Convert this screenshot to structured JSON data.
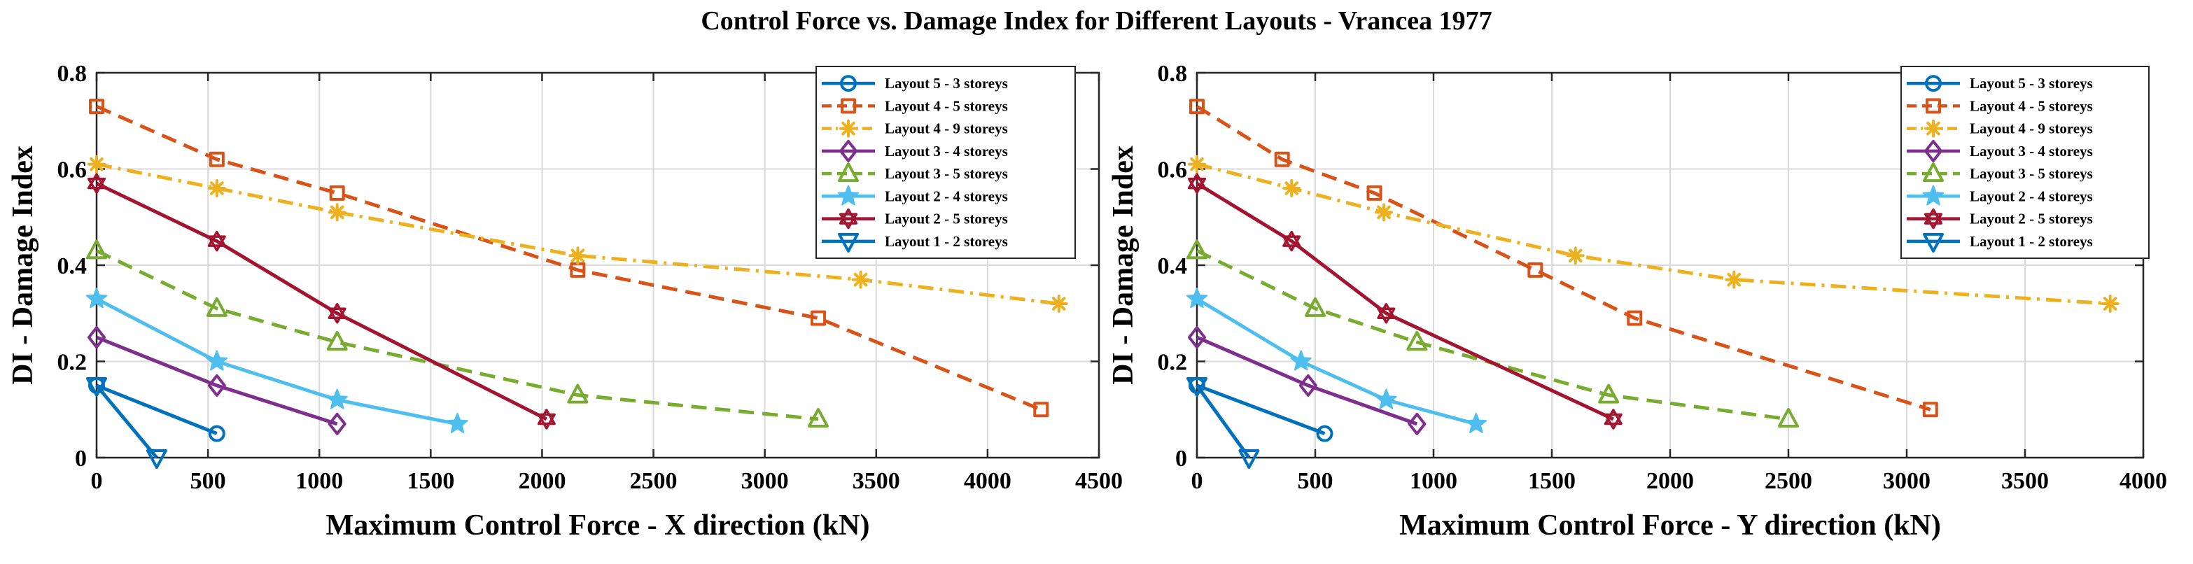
{
  "figure": {
    "title": "Control Force vs. Damage Index for Different Layouts - Vrancea 1977"
  },
  "chart_data": [
    {
      "type": "line",
      "title": "",
      "xlabel": "Maximum Control Force  - X direction (kN)",
      "ylabel": "DI - Damage Index",
      "xlim": [
        0,
        4500
      ],
      "ylim": [
        0,
        0.8
      ],
      "xticks": [
        0,
        500,
        1000,
        1500,
        2000,
        2500,
        3000,
        3500,
        4000,
        4500
      ],
      "yticks": [
        0,
        0.2,
        0.4,
        0.6,
        0.8
      ],
      "grid": true,
      "legend_position": "top-right",
      "series": [
        {
          "name": "Layout 5 - 3 storeys",
          "color": "#0072BD",
          "dash": "solid",
          "marker": "circle",
          "x": [
            0,
            540
          ],
          "y": [
            0.15,
            0.05
          ]
        },
        {
          "name": "Layout 4 - 5 storeys",
          "color": "#D95319",
          "dash": "dashed",
          "marker": "square",
          "x": [
            0,
            540,
            1080,
            2160,
            3240,
            4240
          ],
          "y": [
            0.73,
            0.62,
            0.55,
            0.39,
            0.29,
            0.1
          ]
        },
        {
          "name": "Layout 4 - 9 storeys",
          "color": "#EDB120",
          "dash": "dashdot",
          "marker": "asterisk",
          "x": [
            0,
            540,
            1080,
            2160,
            3430,
            4320
          ],
          "y": [
            0.61,
            0.56,
            0.51,
            0.42,
            0.37,
            0.32
          ]
        },
        {
          "name": "Layout 3 - 4 storeys",
          "color": "#7E2F8E",
          "dash": "solid",
          "marker": "diamond",
          "x": [
            0,
            540,
            1080
          ],
          "y": [
            0.25,
            0.15,
            0.07
          ]
        },
        {
          "name": "Layout 3 - 5 storeys",
          "color": "#77AC30",
          "dash": "dashed",
          "marker": "triangle-up",
          "x": [
            0,
            540,
            1080,
            2160,
            3240
          ],
          "y": [
            0.43,
            0.31,
            0.24,
            0.13,
            0.08
          ]
        },
        {
          "name": "Layout 2 - 4 storeys",
          "color": "#4DBEEE",
          "dash": "solid",
          "marker": "star",
          "x": [
            0,
            540,
            1080,
            1620
          ],
          "y": [
            0.33,
            0.2,
            0.12,
            0.07
          ]
        },
        {
          "name": "Layout 2 - 5 storeys",
          "color": "#A2142F",
          "dash": "solid",
          "marker": "hexagram",
          "x": [
            0,
            540,
            1080,
            2020
          ],
          "y": [
            0.57,
            0.45,
            0.3,
            0.08
          ]
        },
        {
          "name": "Layout 1 - 2 storeys",
          "color": "#0072BD",
          "dash": "solid",
          "marker": "triangle-down",
          "x": [
            0,
            270
          ],
          "y": [
            0.15,
            0.0
          ]
        }
      ]
    },
    {
      "type": "line",
      "title": "",
      "xlabel": "Maximum Control Force  - Y direction (kN)",
      "ylabel": "DI - Damage Index",
      "xlim": [
        0,
        4000
      ],
      "ylim": [
        0,
        0.8
      ],
      "xticks": [
        0,
        500,
        1000,
        1500,
        2000,
        2500,
        3000,
        3500,
        4000
      ],
      "yticks": [
        0,
        0.2,
        0.4,
        0.6,
        0.8
      ],
      "grid": true,
      "legend_position": "top-right",
      "series": [
        {
          "name": "Layout 5 - 3 storeys",
          "color": "#0072BD",
          "dash": "solid",
          "marker": "circle",
          "x": [
            0,
            540
          ],
          "y": [
            0.15,
            0.05
          ]
        },
        {
          "name": "Layout 4 - 5 storeys",
          "color": "#D95319",
          "dash": "dashed",
          "marker": "square",
          "x": [
            0,
            360,
            750,
            1430,
            1850,
            3100
          ],
          "y": [
            0.73,
            0.62,
            0.55,
            0.39,
            0.29,
            0.1
          ]
        },
        {
          "name": "Layout 4 - 9 storeys",
          "color": "#EDB120",
          "dash": "dashdot",
          "marker": "asterisk",
          "x": [
            0,
            400,
            790,
            1600,
            2270,
            3860
          ],
          "y": [
            0.61,
            0.56,
            0.51,
            0.42,
            0.37,
            0.32
          ]
        },
        {
          "name": "Layout 3 - 4 storeys",
          "color": "#7E2F8E",
          "dash": "solid",
          "marker": "diamond",
          "x": [
            0,
            470,
            930
          ],
          "y": [
            0.25,
            0.15,
            0.07
          ]
        },
        {
          "name": "Layout 3 - 5 storeys",
          "color": "#77AC30",
          "dash": "dashed",
          "marker": "triangle-up",
          "x": [
            0,
            500,
            930,
            1740,
            2500
          ],
          "y": [
            0.43,
            0.31,
            0.24,
            0.13,
            0.08
          ]
        },
        {
          "name": "Layout 2 - 4 storeys",
          "color": "#4DBEEE",
          "dash": "solid",
          "marker": "star",
          "x": [
            0,
            440,
            800,
            1180
          ],
          "y": [
            0.33,
            0.2,
            0.12,
            0.07
          ]
        },
        {
          "name": "Layout 2 - 5 storeys",
          "color": "#A2142F",
          "dash": "solid",
          "marker": "hexagram",
          "x": [
            0,
            400,
            800,
            1760
          ],
          "y": [
            0.57,
            0.45,
            0.3,
            0.08
          ]
        },
        {
          "name": "Layout 1 - 2 storeys",
          "color": "#0072BD",
          "dash": "solid",
          "marker": "triangle-down",
          "x": [
            0,
            220
          ],
          "y": [
            0.15,
            0.0
          ]
        }
      ]
    }
  ]
}
